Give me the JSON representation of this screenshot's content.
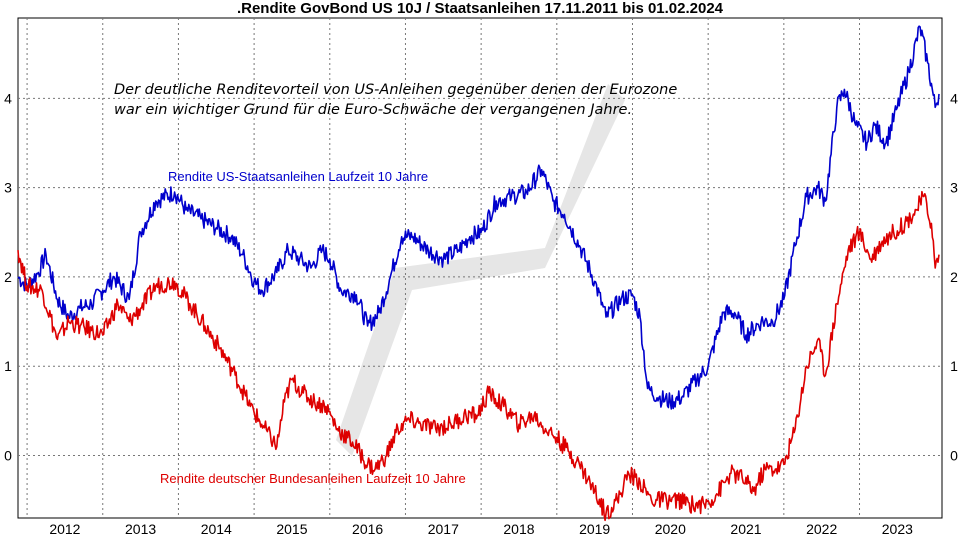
{
  "chart_data": {
    "type": "line",
    "title": ".Rendite GovBond US 10J / Staatsanleihen 17.11.2011 bis 01.02.2024",
    "annotation": [
      "Der deutliche Renditevorteil von US-Anleihen gegenüber denen der Eurozone",
      "war ein wichtiger Grund für die Euro-Schwäche der vergangenen Jahre."
    ],
    "x_ticks": [
      "2012",
      "2013",
      "2014",
      "2015",
      "2016",
      "2017",
      "2018",
      "2019",
      "2020",
      "2021",
      "2022",
      "2023"
    ],
    "y_ticks": [
      "0",
      "1",
      "2",
      "3",
      "4"
    ],
    "ylim": [
      -0.7,
      4.9
    ],
    "xlim": [
      2011.88,
      2024.09
    ],
    "grid": true,
    "colors": {
      "us": "#0000cc",
      "de": "#dd0000"
    },
    "series": [
      {
        "name": "Rendite US-Staatsanleihen Laufzeit 10 Jahre",
        "x": [
          2011.88,
          2012.0,
          2012.15,
          2012.25,
          2012.4,
          2012.55,
          2012.7,
          2012.85,
          2013.0,
          2013.15,
          2013.35,
          2013.5,
          2013.7,
          2013.95,
          2014.1,
          2014.3,
          2014.5,
          2014.7,
          2014.85,
          2015.0,
          2015.1,
          2015.3,
          2015.45,
          2015.6,
          2015.75,
          2015.9,
          2016.0,
          2016.15,
          2016.35,
          2016.5,
          2016.65,
          2016.8,
          2016.95,
          2017.1,
          2017.3,
          2017.5,
          2017.7,
          2017.85,
          2018.0,
          2018.2,
          2018.4,
          2018.6,
          2018.8,
          2018.95,
          2019.1,
          2019.3,
          2019.5,
          2019.65,
          2019.85,
          2020.0,
          2020.1,
          2020.2,
          2020.35,
          2020.5,
          2020.65,
          2020.85,
          2021.0,
          2021.2,
          2021.35,
          2021.5,
          2021.7,
          2021.85,
          2022.0,
          2022.15,
          2022.3,
          2022.45,
          2022.55,
          2022.7,
          2022.8,
          2022.95,
          2023.1,
          2023.2,
          2023.35,
          2023.5,
          2023.65,
          2023.8,
          2023.9,
          2024.0,
          2024.05
        ],
        "y": [
          2.0,
          1.9,
          2.05,
          2.25,
          1.75,
          1.55,
          1.65,
          1.7,
          1.85,
          2.0,
          1.75,
          2.5,
          2.85,
          2.95,
          2.75,
          2.65,
          2.55,
          2.45,
          2.25,
          1.95,
          1.85,
          2.05,
          2.3,
          2.2,
          2.1,
          2.3,
          2.2,
          1.85,
          1.8,
          1.45,
          1.6,
          2.0,
          2.45,
          2.45,
          2.3,
          2.2,
          2.3,
          2.45,
          2.5,
          2.85,
          2.9,
          2.95,
          3.2,
          2.85,
          2.7,
          2.35,
          1.95,
          1.55,
          1.75,
          1.8,
          1.55,
          0.75,
          0.65,
          0.6,
          0.65,
          0.85,
          1.0,
          1.6,
          1.6,
          1.35,
          1.5,
          1.5,
          1.75,
          2.35,
          2.9,
          3.0,
          2.85,
          3.9,
          4.1,
          3.7,
          3.5,
          3.7,
          3.5,
          3.9,
          4.3,
          4.8,
          4.4,
          3.9,
          4.05
        ]
      },
      {
        "name": "Rendite deutscher Bundesanleihen Laufzeit 10 Jahre",
        "x": [
          2011.88,
          2012.0,
          2012.2,
          2012.4,
          2012.55,
          2012.7,
          2012.85,
          2013.0,
          2013.2,
          2013.35,
          2013.5,
          2013.7,
          2013.95,
          2014.15,
          2014.35,
          2014.55,
          2014.75,
          2014.95,
          2015.1,
          2015.3,
          2015.4,
          2015.5,
          2015.65,
          2015.8,
          2015.95,
          2016.1,
          2016.3,
          2016.5,
          2016.6,
          2016.75,
          2016.9,
          2017.05,
          2017.2,
          2017.4,
          2017.6,
          2017.8,
          2017.95,
          2018.1,
          2018.3,
          2018.5,
          2018.7,
          2018.85,
          2019.0,
          2019.15,
          2019.3,
          2019.5,
          2019.65,
          2019.8,
          2019.95,
          2020.1,
          2020.25,
          2020.45,
          2020.6,
          2020.8,
          2020.95,
          2021.1,
          2021.3,
          2021.45,
          2021.6,
          2021.75,
          2021.9,
          2022.0,
          2022.15,
          2022.3,
          2022.45,
          2022.55,
          2022.7,
          2022.85,
          2023.0,
          2023.15,
          2023.3,
          2023.45,
          2023.6,
          2023.75,
          2023.85,
          2023.95,
          2024.0,
          2024.05
        ],
        "y": [
          2.3,
          1.9,
          1.85,
          1.3,
          1.5,
          1.45,
          1.4,
          1.35,
          1.7,
          1.5,
          1.65,
          1.9,
          1.95,
          1.7,
          1.45,
          1.2,
          0.9,
          0.55,
          0.35,
          0.1,
          0.6,
          0.85,
          0.7,
          0.6,
          0.55,
          0.3,
          0.15,
          -0.1,
          -0.15,
          0.0,
          0.3,
          0.4,
          0.35,
          0.3,
          0.35,
          0.45,
          0.45,
          0.7,
          0.55,
          0.35,
          0.45,
          0.3,
          0.2,
          0.05,
          -0.1,
          -0.4,
          -0.65,
          -0.5,
          -0.2,
          -0.3,
          -0.5,
          -0.5,
          -0.5,
          -0.55,
          -0.55,
          -0.45,
          -0.2,
          -0.25,
          -0.4,
          -0.15,
          -0.15,
          -0.1,
          0.3,
          1.0,
          1.3,
          0.9,
          1.7,
          2.3,
          2.5,
          2.2,
          2.4,
          2.5,
          2.6,
          2.75,
          2.9,
          2.6,
          2.1,
          2.25
        ]
      }
    ]
  }
}
